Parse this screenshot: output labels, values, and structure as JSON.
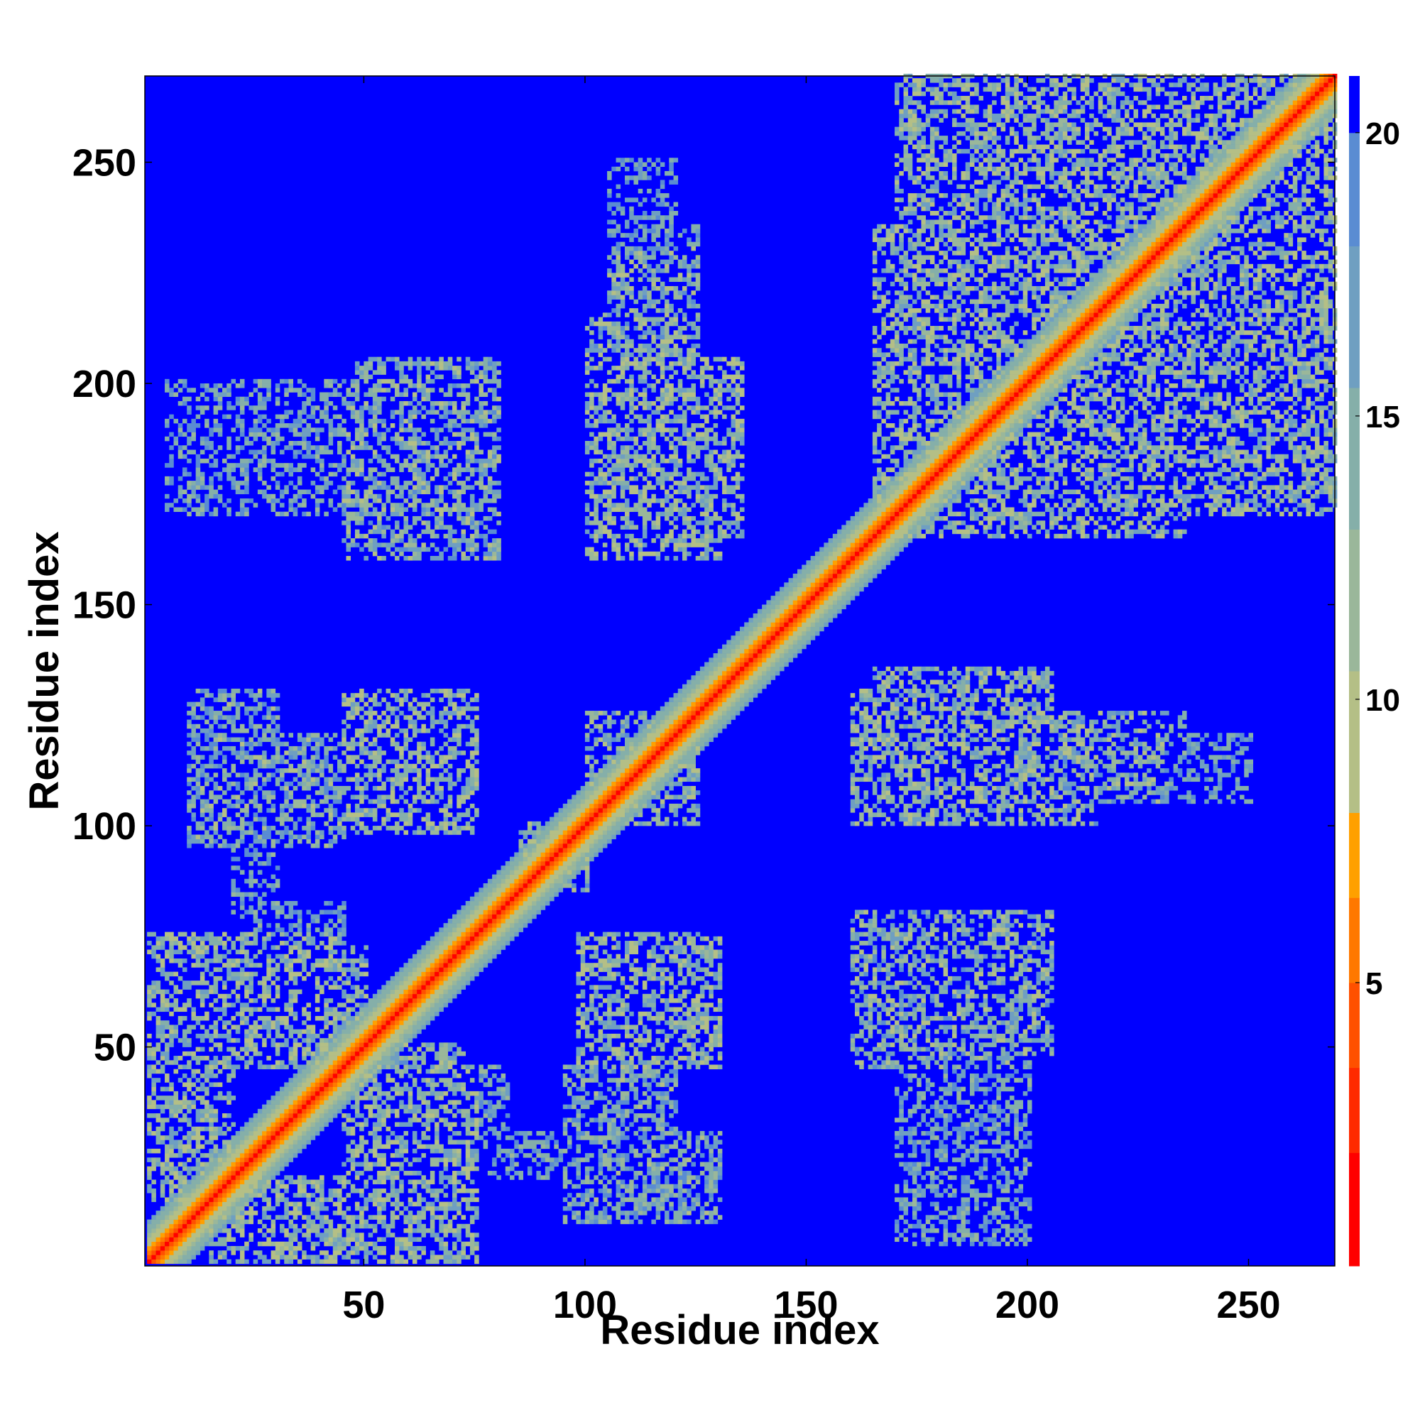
{
  "chart_data": {
    "type": "heatmap",
    "title": "",
    "xlabel": "Residue index",
    "ylabel": "Residue index",
    "n_residues": 269,
    "xlim": [
      1,
      269
    ],
    "ylim": [
      1,
      269
    ],
    "x_ticks": [
      50,
      100,
      150,
      200,
      250
    ],
    "y_ticks": [
      50,
      100,
      150,
      200,
      250
    ],
    "colorbar": {
      "range": [
        0,
        21
      ],
      "ticks": [
        5,
        10,
        15,
        20
      ],
      "colors": [
        "#ff0000",
        "#ff2a00",
        "#ff5000",
        "#ff7800",
        "#ffa000",
        "#b4bf86",
        "#9ab79a",
        "#85afa9",
        "#6f9fc1",
        "#5a8cd2",
        "#0000ff"
      ],
      "bounds": [
        0,
        2,
        3.5,
        5,
        6.5,
        8,
        10.5,
        13,
        15.5,
        18,
        20,
        21
      ]
    },
    "background_value": 21,
    "diagonal_band": [
      {
        "offset": 0,
        "value": 0.5
      },
      {
        "offset": 1,
        "value": 3.8
      },
      {
        "offset": 2,
        "value": 5.5
      },
      {
        "offset": 3,
        "value": 6.5
      },
      {
        "offset": 4,
        "value": 8.5
      },
      {
        "offset": 5,
        "value": 10
      },
      {
        "offset": 6,
        "value": 11.5
      },
      {
        "offset": 7,
        "value": 13
      },
      {
        "offset": 8,
        "value": 15
      },
      {
        "offset": 9,
        "value": 17
      }
    ],
    "contact_regions": [
      {
        "i": [
          15,
          45
        ],
        "j": [
          1,
          20
        ],
        "min_value": 8
      },
      {
        "i": [
          45,
          75
        ],
        "j": [
          1,
          45
        ],
        "min_value": 8
      },
      {
        "i": [
          50,
          72
        ],
        "j": [
          20,
          50
        ],
        "min_value": 9
      },
      {
        "i": [
          55,
          70
        ],
        "j": [
          5,
          30
        ],
        "min_value": 10
      },
      {
        "i": [
          25,
          55
        ],
        "j": [
          45,
          60
        ],
        "min_value": 10
      },
      {
        "i": [
          75,
          82
        ],
        "j": [
          25,
          45
        ],
        "min_value": 12
      },
      {
        "i": [
          95,
          130
        ],
        "j": [
          10,
          30
        ],
        "min_value": 10
      },
      {
        "i": [
          100,
          130
        ],
        "j": [
          45,
          75
        ],
        "min_value": 8
      },
      {
        "i": [
          100,
          125
        ],
        "j": [
          100,
          125
        ],
        "min_value": 9
      },
      {
        "i": [
          98,
          110
        ],
        "j": [
          25,
          45
        ],
        "min_value": 11
      },
      {
        "i": [
          85,
          100
        ],
        "j": [
          85,
          100
        ],
        "min_value": 9
      },
      {
        "i": [
          45,
          75
        ],
        "j": [
          98,
          125
        ],
        "min_value": 8
      },
      {
        "i": [
          15,
          45
        ],
        "j": [
          95,
          120
        ],
        "min_value": 10
      },
      {
        "i": [
          20,
          30
        ],
        "j": [
          78,
          95
        ],
        "min_value": 12
      },
      {
        "i": [
          160,
          205
        ],
        "j": [
          48,
          80
        ],
        "min_value": 9
      },
      {
        "i": [
          165,
          205
        ],
        "j": [
          100,
          135
        ],
        "min_value": 8
      },
      {
        "i": [
          195,
          230
        ],
        "j": [
          105,
          125
        ],
        "min_value": 9
      },
      {
        "i": [
          170,
          200
        ],
        "j": [
          5,
          45
        ],
        "min_value": 12
      },
      {
        "i": [
          230,
          250
        ],
        "j": [
          105,
          120
        ],
        "min_value": 13
      },
      {
        "i": [
          100,
          130
        ],
        "j": [
          160,
          195
        ],
        "min_value": 8
      },
      {
        "i": [
          100,
          125
        ],
        "j": [
          190,
          215
        ],
        "min_value": 9
      },
      {
        "i": [
          105,
          125
        ],
        "j": [
          215,
          235
        ],
        "min_value": 12
      },
      {
        "i": [
          110,
          120
        ],
        "j": [
          235,
          250
        ],
        "min_value": 13
      },
      {
        "i": [
          45,
          70
        ],
        "j": [
          160,
          195
        ],
        "min_value": 9
      },
      {
        "i": [
          15,
          50
        ],
        "j": [
          175,
          200
        ],
        "min_value": 12
      },
      {
        "i": [
          165,
          185
        ],
        "j": [
          170,
          200
        ],
        "min_value": 9
      },
      {
        "i": [
          165,
          215
        ],
        "j": [
          170,
          235
        ],
        "min_value": 8
      },
      {
        "i": [
          180,
          269
        ],
        "j": [
          170,
          269
        ],
        "min_value": 8
      },
      {
        "i": [
          185,
          210
        ],
        "j": [
          205,
          260
        ],
        "min_value": 12
      },
      {
        "i": [
          240,
          269
        ],
        "j": [
          245,
          269
        ],
        "min_value": 8
      }
    ]
  }
}
